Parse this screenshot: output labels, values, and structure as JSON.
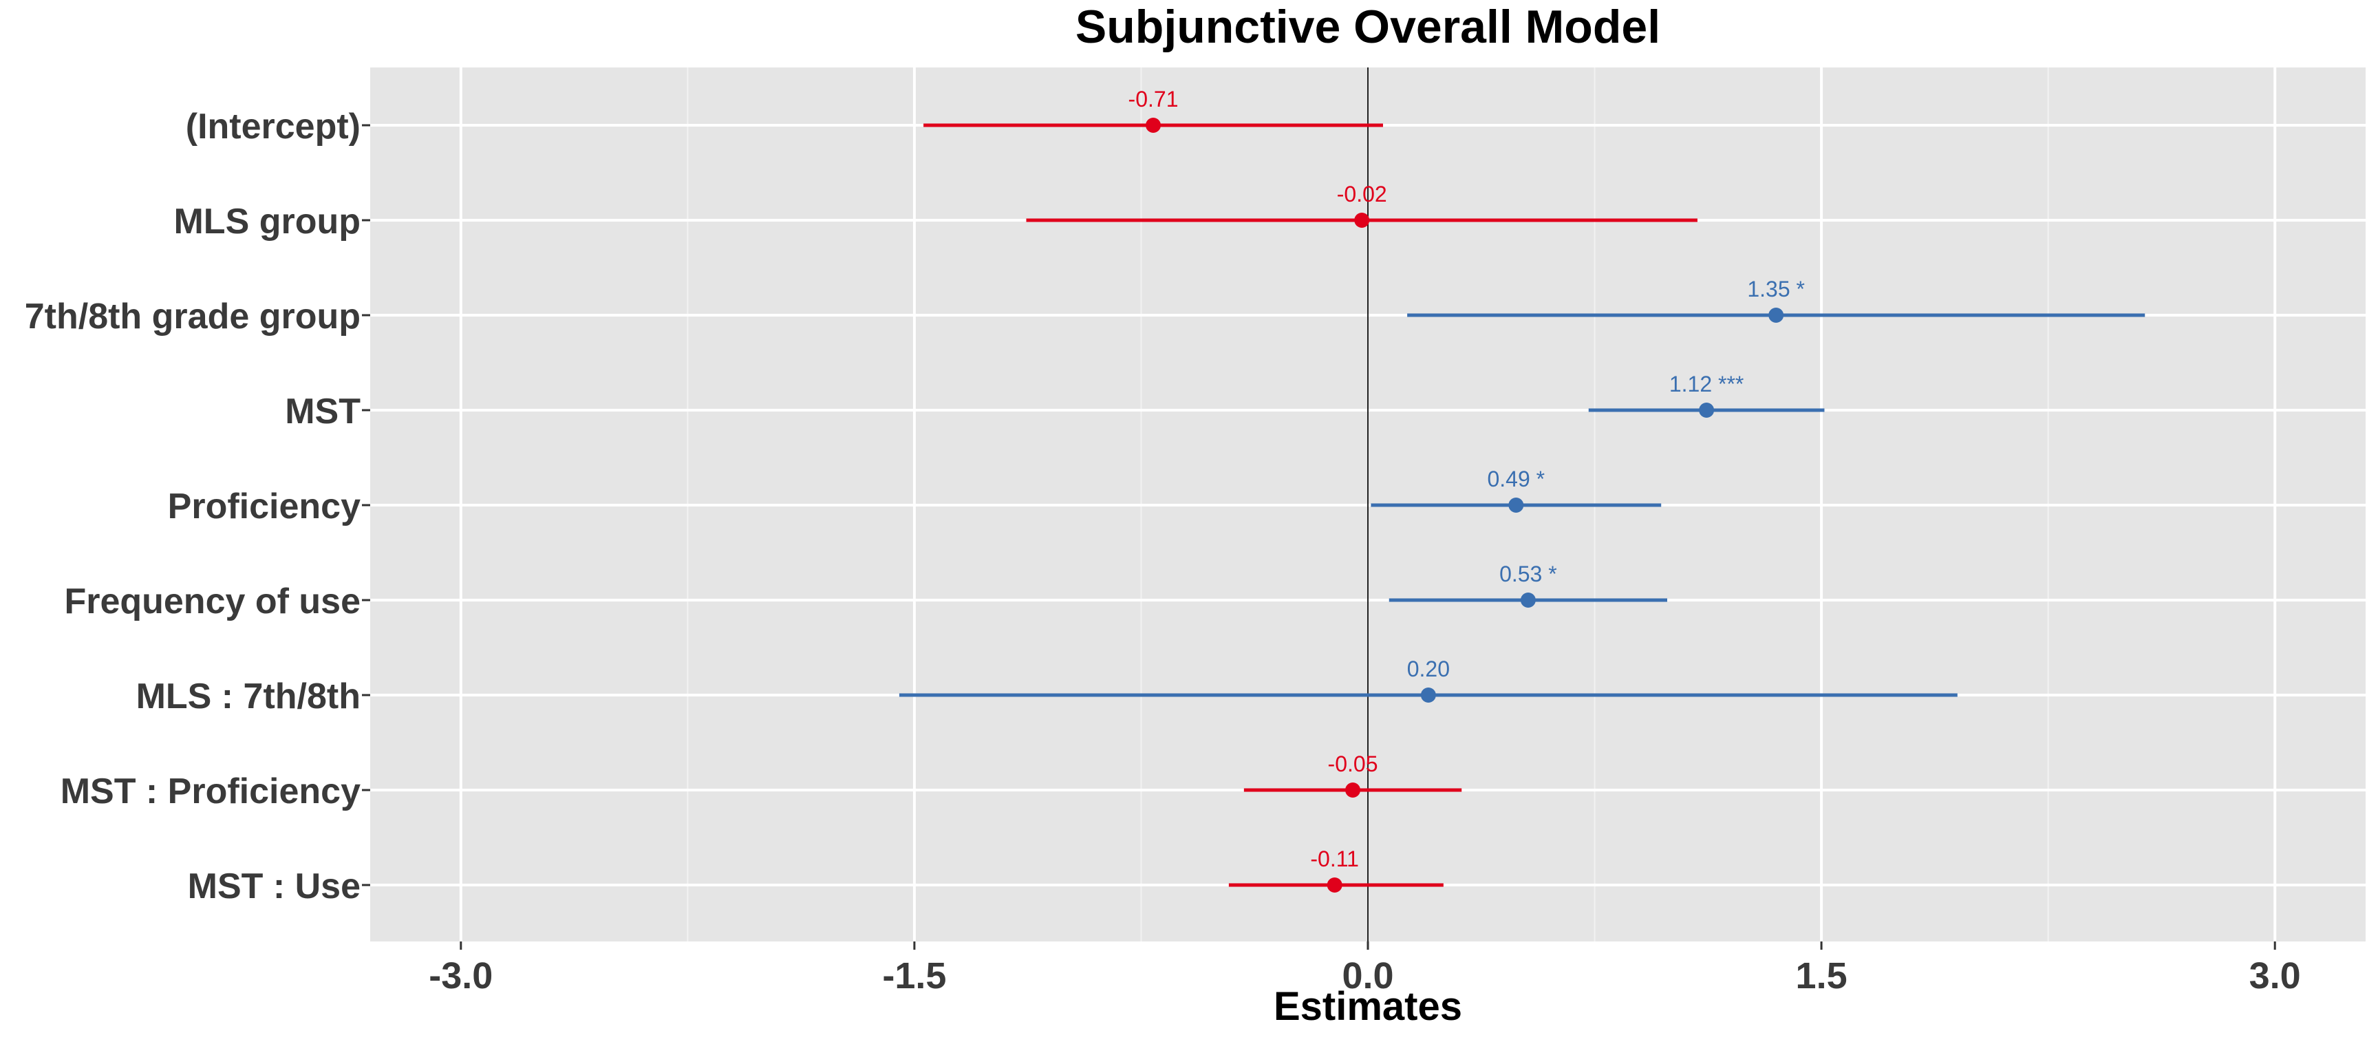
{
  "chart_data": {
    "type": "forest",
    "title": "Subjunctive Overall Model",
    "xlabel": "Estimates",
    "xlim": [
      -3.3,
      3.3
    ],
    "x_ticks": [
      -3.0,
      -1.5,
      0.0,
      1.5,
      3.0
    ],
    "x_tick_labels": [
      "-3.0",
      "-1.5",
      "0.0",
      "1.5",
      "3.0"
    ],
    "grid": true,
    "reference_line": 0,
    "colors": {
      "positive": "#3a6fb0",
      "negative": "#e0001b"
    },
    "terms": [
      {
        "label": "(Intercept)",
        "estimate": -0.71,
        "ci_low": -1.47,
        "ci_high": 0.05,
        "annotation": "-0.71"
      },
      {
        "label": "MLS group",
        "estimate": -0.02,
        "ci_low": -1.13,
        "ci_high": 1.09,
        "annotation": "-0.02"
      },
      {
        "label": "7th/8th grade group",
        "estimate": 1.35,
        "ci_low": 0.13,
        "ci_high": 2.57,
        "annotation": "1.35 *"
      },
      {
        "label": "MST",
        "estimate": 1.12,
        "ci_low": 0.73,
        "ci_high": 1.51,
        "annotation": "1.12 ***"
      },
      {
        "label": "Proficiency",
        "estimate": 0.49,
        "ci_low": 0.01,
        "ci_high": 0.97,
        "annotation": "0.49 *"
      },
      {
        "label": "Frequency of use",
        "estimate": 0.53,
        "ci_low": 0.07,
        "ci_high": 0.99,
        "annotation": "0.53 *"
      },
      {
        "label": "MLS : 7th/8th",
        "estimate": 0.2,
        "ci_low": -1.55,
        "ci_high": 1.95,
        "annotation": "0.20"
      },
      {
        "label": "MST : Proficiency",
        "estimate": -0.05,
        "ci_low": -0.41,
        "ci_high": 0.31,
        "annotation": "-0.05"
      },
      {
        "label": "MST : Use",
        "estimate": -0.11,
        "ci_low": -0.46,
        "ci_high": 0.25,
        "annotation": "-0.11"
      }
    ]
  }
}
